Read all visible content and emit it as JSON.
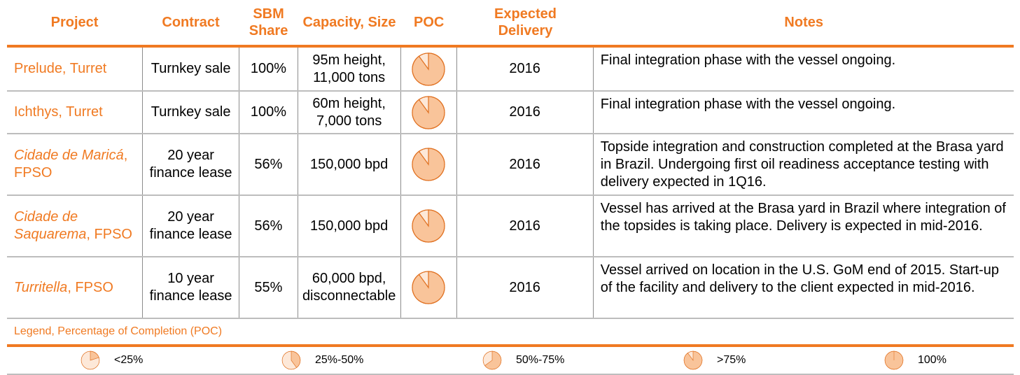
{
  "headers": {
    "project": "Project",
    "contract": "Contract",
    "sbm_share_l1": "SBM",
    "sbm_share_l2": "Share",
    "capacity": "Capacity, Size",
    "poc": "POC",
    "delivery_l1": "Expected",
    "delivery_l2": "Delivery",
    "notes": "Notes"
  },
  "rows": [
    {
      "project_italic": "",
      "project_plain": "Prelude, Turret",
      "contract_l1": "Turnkey sale",
      "contract_l2": "",
      "share": "100%",
      "capacity_l1": "95m height,",
      "capacity_l2": "11,000 tons",
      "poc": 0.9,
      "delivery": "2016",
      "notes": "Final integration phase with the vessel ongoing."
    },
    {
      "project_italic": "",
      "project_plain": "Ichthys, Turret",
      "contract_l1": "Turnkey sale",
      "contract_l2": "",
      "share": "100%",
      "capacity_l1": "60m height,",
      "capacity_l2": "7,000 tons",
      "poc": 0.9,
      "delivery": "2016",
      "notes": "Final integration phase with the vessel ongoing."
    },
    {
      "project_italic": "Cidade de Maricá",
      "project_plain": ", FPSO",
      "contract_l1": "20 year",
      "contract_l2": "finance lease",
      "share": "56%",
      "capacity_l1": "150,000 bpd",
      "capacity_l2": "",
      "poc": 0.9,
      "delivery": "2016",
      "notes": "Topside integration and construction completed at the Brasa yard in Brazil.  Undergoing first oil readiness acceptance testing with delivery expected in 1Q16."
    },
    {
      "project_italic": "Cidade de Saquarema",
      "project_plain": ", FPSO",
      "contract_l1": "20 year",
      "contract_l2": "finance lease",
      "share": "56%",
      "capacity_l1": "150,000 bpd",
      "capacity_l2": "",
      "poc": 0.9,
      "delivery": "2016",
      "notes": "Vessel has arrived at the Brasa yard in Brazil where integration of the topsides is taking place.  Delivery is expected in mid-2016."
    },
    {
      "project_italic": "Turritella",
      "project_plain": ", FPSO",
      "contract_l1": "10 year",
      "contract_l2": "finance lease",
      "share": "55%",
      "capacity_l1": "60,000 bpd,",
      "capacity_l2": "disconnectable",
      "poc": 0.9,
      "delivery": "2016",
      "notes": "Vessel arrived on location in the U.S. GoM end of 2015. Start-up of the facility and delivery to the client expected in mid-2016."
    }
  ],
  "legend": {
    "title": "Legend, Percentage of Completion (POC)",
    "items": [
      {
        "label": "<25%",
        "fill": 0.2
      },
      {
        "label": "25%-50%",
        "fill": 0.4
      },
      {
        "label": "50%-75%",
        "fill": 0.65
      },
      {
        "label": ">75%",
        "fill": 0.9
      },
      {
        "label": "100%",
        "fill": 1.0
      }
    ]
  },
  "colors": {
    "accent": "#f07a22",
    "pie_fill": "#f9c49a",
    "pie_empty": "#fde8d8"
  }
}
